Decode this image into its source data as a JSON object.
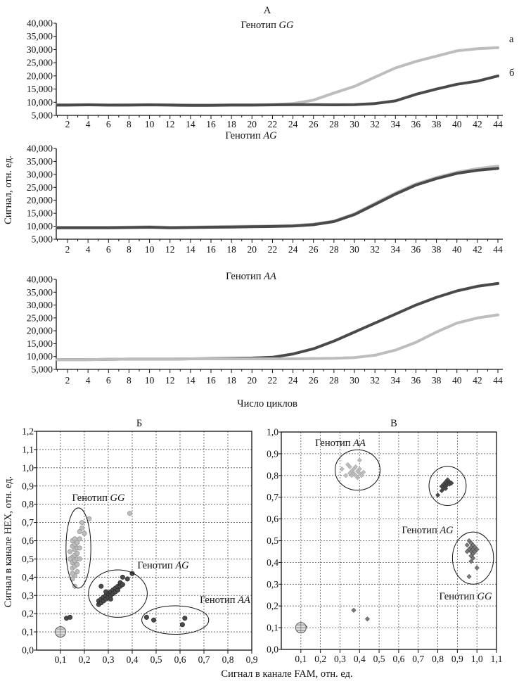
{
  "colors": {
    "light": "#bdbdbd",
    "dark": "#4a4a4a",
    "mid": "#7a7a7a",
    "axis": "#111111",
    "grid": "#555555"
  },
  "figure_a": {
    "label": "А",
    "ylabel": "Сигнал, отн. ед.",
    "xlabel": "Число циклов",
    "ytick_labels": [
      "5,000",
      "10,000",
      "15,000",
      "20,000",
      "25,000",
      "30,000",
      "35,000",
      "40,000"
    ],
    "xtick_labels": [
      "2",
      "4",
      "6",
      "8",
      "10",
      "12",
      "14",
      "16",
      "18",
      "20",
      "22",
      "24",
      "26",
      "28",
      "30",
      "32",
      "34",
      "36",
      "38",
      "40",
      "42",
      "44"
    ]
  },
  "figure_b": {
    "label": "Б",
    "ylabel": "Сигнал в канале HEX, отн. ед."
  },
  "figure_c": {
    "label": "В"
  },
  "shared_xlabel": "Сигнал в канале FAM, отн. ед.",
  "chart_data": [
    {
      "type": "line",
      "title": "Генотип GG",
      "ylim": [
        5000,
        40000
      ],
      "xlim": [
        1,
        44
      ],
      "x": [
        1,
        2,
        4,
        6,
        8,
        10,
        12,
        14,
        16,
        18,
        20,
        22,
        24,
        26,
        28,
        30,
        32,
        34,
        36,
        38,
        40,
        42,
        44
      ],
      "series": [
        {
          "name": "а",
          "color": "light",
          "values": [
            9000,
            9000,
            9100,
            8900,
            9000,
            9100,
            9000,
            8900,
            8900,
            9000,
            9000,
            9100,
            9500,
            10800,
            13500,
            16000,
            19500,
            23000,
            25500,
            27500,
            29500,
            30300,
            30700
          ]
        },
        {
          "name": "б",
          "color": "dark",
          "values": [
            8900,
            8900,
            9000,
            8900,
            8900,
            9000,
            8900,
            8800,
            8800,
            8900,
            8900,
            9000,
            9100,
            9100,
            9000,
            9100,
            9500,
            10500,
            13000,
            15000,
            16800,
            18000,
            20000
          ]
        }
      ]
    },
    {
      "type": "line",
      "title": "Генотип AG",
      "ylim": [
        5000,
        40000
      ],
      "xlim": [
        1,
        44
      ],
      "x": [
        1,
        2,
        4,
        6,
        8,
        10,
        12,
        14,
        16,
        18,
        20,
        22,
        24,
        26,
        28,
        30,
        32,
        34,
        36,
        38,
        40,
        42,
        44
      ],
      "series": [
        {
          "color": "light",
          "values": [
            9600,
            9600,
            9600,
            9600,
            9700,
            9800,
            9600,
            9700,
            9800,
            9900,
            10000,
            10100,
            10300,
            10800,
            12000,
            14800,
            18800,
            22800,
            26300,
            28800,
            30800,
            32200,
            33200
          ]
        },
        {
          "color": "dark",
          "values": [
            9400,
            9400,
            9400,
            9400,
            9500,
            9600,
            9400,
            9500,
            9600,
            9700,
            9800,
            9900,
            10100,
            10600,
            11800,
            14500,
            18400,
            22400,
            25900,
            28400,
            30400,
            31600,
            32300
          ]
        }
      ]
    },
    {
      "type": "line",
      "title": "Генотип AA",
      "ylim": [
        5000,
        40000
      ],
      "xlim": [
        1,
        44
      ],
      "x": [
        1,
        2,
        4,
        6,
        8,
        10,
        12,
        14,
        16,
        18,
        20,
        22,
        24,
        26,
        28,
        30,
        32,
        34,
        36,
        38,
        40,
        42,
        44
      ],
      "series": [
        {
          "color": "dark",
          "values": [
            8800,
            8800,
            8800,
            8900,
            9000,
            9000,
            9000,
            9100,
            9200,
            9300,
            9400,
            9700,
            11000,
            13000,
            16000,
            19500,
            23000,
            26500,
            30000,
            33000,
            35500,
            37300,
            38400
          ]
        },
        {
          "color": "light",
          "values": [
            8800,
            8800,
            8800,
            8900,
            9000,
            9000,
            9000,
            9100,
            9100,
            9100,
            9100,
            9100,
            9100,
            9200,
            9300,
            9600,
            10500,
            12500,
            15500,
            19500,
            23000,
            25000,
            26200
          ]
        }
      ]
    },
    {
      "type": "scatter",
      "title": "Б",
      "xlim": [
        0,
        0.9
      ],
      "ylim": [
        0,
        1.2
      ],
      "grid": true,
      "marker": "circle",
      "xtick_labels": [
        "0,1",
        "0,2",
        "0,3",
        "0,4",
        "0,5",
        "0,6",
        "0,7",
        "0,8",
        "0,9"
      ],
      "ytick_labels": [
        "0,0",
        "0,1",
        "0,2",
        "0,3",
        "0,4",
        "0,5",
        "0,6",
        "0,7",
        "0,8",
        "0,9",
        "1,0",
        "1,1",
        "1,2"
      ],
      "groups": [
        {
          "name": "Генотип GG",
          "color": "light",
          "ellipse": {
            "cx": 0.175,
            "cy": 0.56,
            "rx": 0.052,
            "ry": 0.22
          },
          "points": [
            [
              0.16,
              0.35
            ],
            [
              0.15,
              0.39
            ],
            [
              0.16,
              0.41
            ],
            [
              0.15,
              0.42
            ],
            [
              0.17,
              0.43
            ],
            [
              0.15,
              0.45
            ],
            [
              0.16,
              0.46
            ],
            [
              0.17,
              0.47
            ],
            [
              0.15,
              0.48
            ],
            [
              0.16,
              0.49
            ],
            [
              0.17,
              0.5
            ],
            [
              0.15,
              0.51
            ],
            [
              0.16,
              0.52
            ],
            [
              0.17,
              0.53
            ],
            [
              0.14,
              0.54
            ],
            [
              0.16,
              0.55
            ],
            [
              0.17,
              0.56
            ],
            [
              0.15,
              0.57
            ],
            [
              0.16,
              0.58
            ],
            [
              0.17,
              0.59
            ],
            [
              0.15,
              0.6
            ],
            [
              0.16,
              0.61
            ],
            [
              0.18,
              0.56
            ],
            [
              0.18,
              0.5
            ],
            [
              0.14,
              0.5
            ],
            [
              0.18,
              0.61
            ],
            [
              0.18,
              0.65
            ],
            [
              0.19,
              0.67
            ],
            [
              0.19,
              0.7
            ],
            [
              0.2,
              0.64
            ],
            [
              0.22,
              0.72
            ],
            [
              0.39,
              0.75
            ]
          ]
        },
        {
          "name": "Генотип AG",
          "color": "dark",
          "ellipse": {
            "cx": 0.34,
            "cy": 0.31,
            "rx": 0.123,
            "ry": 0.13
          },
          "points": [
            [
              0.26,
              0.25
            ],
            [
              0.26,
              0.27
            ],
            [
              0.27,
              0.26
            ],
            [
              0.27,
              0.28
            ],
            [
              0.28,
              0.27
            ],
            [
              0.28,
              0.29
            ],
            [
              0.29,
              0.28
            ],
            [
              0.29,
              0.3
            ],
            [
              0.3,
              0.29
            ],
            [
              0.3,
              0.31
            ],
            [
              0.31,
              0.3
            ],
            [
              0.31,
              0.32
            ],
            [
              0.32,
              0.31
            ],
            [
              0.32,
              0.33
            ],
            [
              0.33,
              0.32
            ],
            [
              0.33,
              0.34
            ],
            [
              0.34,
              0.33
            ],
            [
              0.34,
              0.35
            ],
            [
              0.35,
              0.35
            ],
            [
              0.35,
              0.37
            ],
            [
              0.36,
              0.36
            ],
            [
              0.36,
              0.4
            ],
            [
              0.38,
              0.39
            ],
            [
              0.4,
              0.42
            ],
            [
              0.27,
              0.35
            ],
            [
              0.29,
              0.32
            ],
            [
              0.31,
              0.28
            ]
          ]
        },
        {
          "name": "Генотип AA",
          "color": "dark",
          "ellipse": {
            "cx": 0.58,
            "cy": 0.165,
            "rx": 0.14,
            "ry": 0.078
          },
          "points": [
            [
              0.46,
              0.18
            ],
            [
              0.49,
              0.165
            ],
            [
              0.61,
              0.14
            ],
            [
              0.62,
              0.175
            ]
          ]
        },
        {
          "color": "dark",
          "points": [
            [
              0.125,
              0.175
            ],
            [
              0.14,
              0.18
            ]
          ]
        }
      ],
      "ntc": [
        0.1,
        0.1
      ]
    },
    {
      "type": "scatter",
      "title": "В",
      "xlim": [
        0,
        1.1
      ],
      "ylim": [
        0,
        1.0
      ],
      "grid": true,
      "marker": "diamond",
      "xtick_labels": [
        "0,1",
        "0,2",
        "0,3",
        "0,4",
        "0,5",
        "0,6",
        "0,7",
        "0,8",
        "0,9",
        "1,0",
        "1,1"
      ],
      "ytick_labels": [
        "0,0",
        "0,1",
        "0,2",
        "0,3",
        "0,4",
        "0,5",
        "0,6",
        "0,7",
        "0,8",
        "0,9",
        "1,0"
      ],
      "groups": [
        {
          "name": "Генотип AA",
          "color": "light",
          "ellipse": {
            "cx": 0.39,
            "cy": 0.825,
            "rx": 0.115,
            "ry": 0.093
          },
          "points": [
            [
              0.31,
              0.83
            ],
            [
              0.34,
              0.85
            ],
            [
              0.35,
              0.84
            ],
            [
              0.36,
              0.82
            ],
            [
              0.36,
              0.8
            ],
            [
              0.37,
              0.83
            ],
            [
              0.37,
              0.81
            ],
            [
              0.38,
              0.84
            ],
            [
              0.38,
              0.8
            ],
            [
              0.39,
              0.82
            ],
            [
              0.39,
              0.79
            ],
            [
              0.4,
              0.81
            ],
            [
              0.4,
              0.83
            ],
            [
              0.41,
              0.8
            ],
            [
              0.42,
              0.815
            ],
            [
              0.35,
              0.81
            ],
            [
              0.4,
              0.87
            ],
            [
              0.33,
              0.8
            ]
          ]
        },
        {
          "name": "Генотип AG",
          "color": "dark",
          "ellipse": {
            "cx": 0.85,
            "cy": 0.752,
            "rx": 0.095,
            "ry": 0.09
          },
          "points": [
            [
              0.8,
              0.71
            ],
            [
              0.82,
              0.73
            ],
            [
              0.82,
              0.75
            ],
            [
              0.83,
              0.74
            ],
            [
              0.83,
              0.76
            ],
            [
              0.84,
              0.75
            ],
            [
              0.84,
              0.77
            ],
            [
              0.85,
              0.76
            ],
            [
              0.85,
              0.78
            ],
            [
              0.86,
              0.77
            ],
            [
              0.86,
              0.76
            ],
            [
              0.87,
              0.765
            ],
            [
              0.84,
              0.74
            ]
          ]
        },
        {
          "name": "Генотип GG",
          "color": "mid",
          "ellipse": {
            "cx": 0.98,
            "cy": 0.42,
            "rx": 0.105,
            "ry": 0.12
          },
          "points": [
            [
              0.95,
              0.48
            ],
            [
              0.96,
              0.5
            ],
            [
              0.96,
              0.46
            ],
            [
              0.97,
              0.49
            ],
            [
              0.97,
              0.45
            ],
            [
              0.97,
              0.47
            ],
            [
              0.98,
              0.48
            ],
            [
              0.98,
              0.44
            ],
            [
              0.98,
              0.46
            ],
            [
              0.99,
              0.45
            ],
            [
              0.99,
              0.47
            ],
            [
              1.0,
              0.46
            ],
            [
              0.95,
              0.45
            ],
            [
              0.97,
              0.43
            ],
            [
              0.98,
              0.42
            ],
            [
              0.97,
              0.405
            ],
            [
              1.0,
              0.375
            ],
            [
              0.96,
              0.335
            ]
          ]
        },
        {
          "color": "mid",
          "points": [
            [
              0.37,
              0.18
            ],
            [
              0.44,
              0.14
            ]
          ]
        },
        {
          "color": "black",
          "points": [
            [
              0.12,
              0.105
            ]
          ]
        }
      ],
      "ntc": [
        0.1,
        0.1
      ]
    }
  ]
}
